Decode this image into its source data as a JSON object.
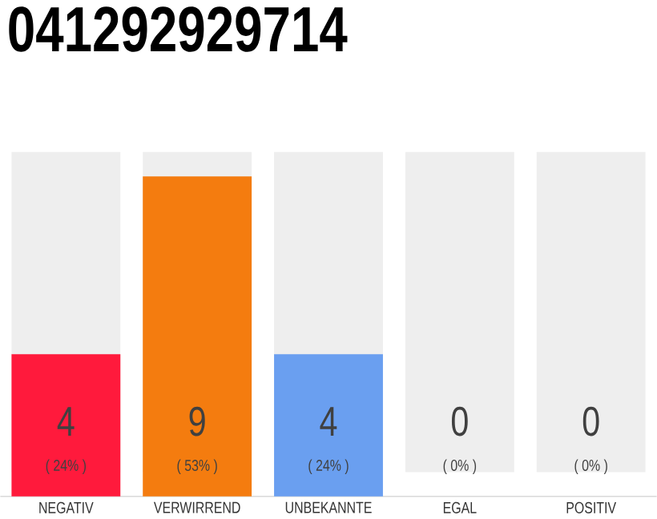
{
  "chart_data": {
    "type": "bar",
    "title": "041292929714",
    "categories": [
      "NEGATIV",
      "VERWIRREND",
      "UNBEKANNTE",
      "EGAL",
      "POSITIV"
    ],
    "values": [
      4,
      9,
      4,
      0,
      0
    ],
    "colors": [
      "#ff1a3c",
      "#f47c0f",
      "#6a9ff0",
      "#9e9e9e",
      "#9e9e9e"
    ],
    "value_labels": [
      "4",
      "9",
      "4",
      "0",
      "0"
    ],
    "annotations": [
      "( 24% )",
      "( 53% )",
      "( 24% )",
      "( 0% )",
      "( 0% )"
    ]
  }
}
